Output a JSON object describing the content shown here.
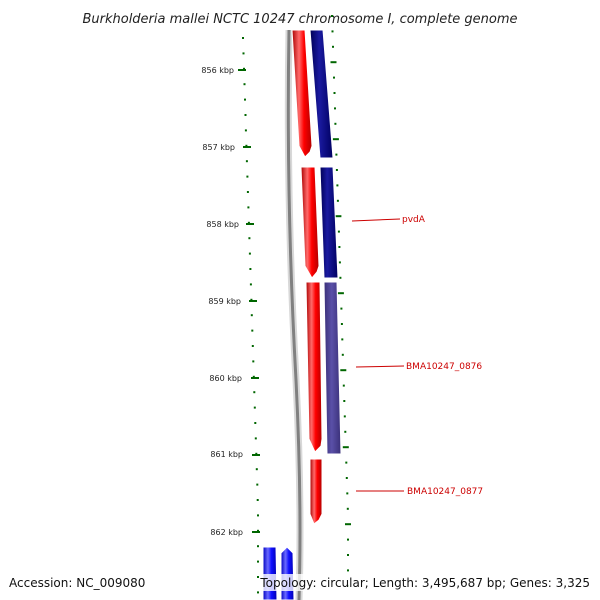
{
  "title": "Burkholderia mallei NCTC 10247 chromosome I, complete genome",
  "footer": {
    "accession": "Accession: NC_009080",
    "topology": "Topology: circular; Length: 3,495,687 bp; Genes: 3,325"
  },
  "ticks": [
    {
      "label": "856 kbp",
      "kbp": 856
    },
    {
      "label": "857 kbp",
      "kbp": 857
    },
    {
      "label": "858 kbp",
      "kbp": 858
    },
    {
      "label": "859 kbp",
      "kbp": 859
    },
    {
      "label": "860 kbp",
      "kbp": 860
    },
    {
      "label": "861 kbp",
      "kbp": 861
    },
    {
      "label": "862 kbp",
      "kbp": 862
    }
  ],
  "gene_labels": [
    {
      "text": "pvdA"
    },
    {
      "text": "BMA10247_0876"
    },
    {
      "text": "BMA10247_0877"
    }
  ],
  "colors": {
    "cds_forward": "#ff0000",
    "cds_reverse": "#000080",
    "cds_other": "#4b3f8f",
    "gene_lane": "#0000ff",
    "backbone": "#808080",
    "tick": "#006600",
    "label": "#cc0000"
  }
}
